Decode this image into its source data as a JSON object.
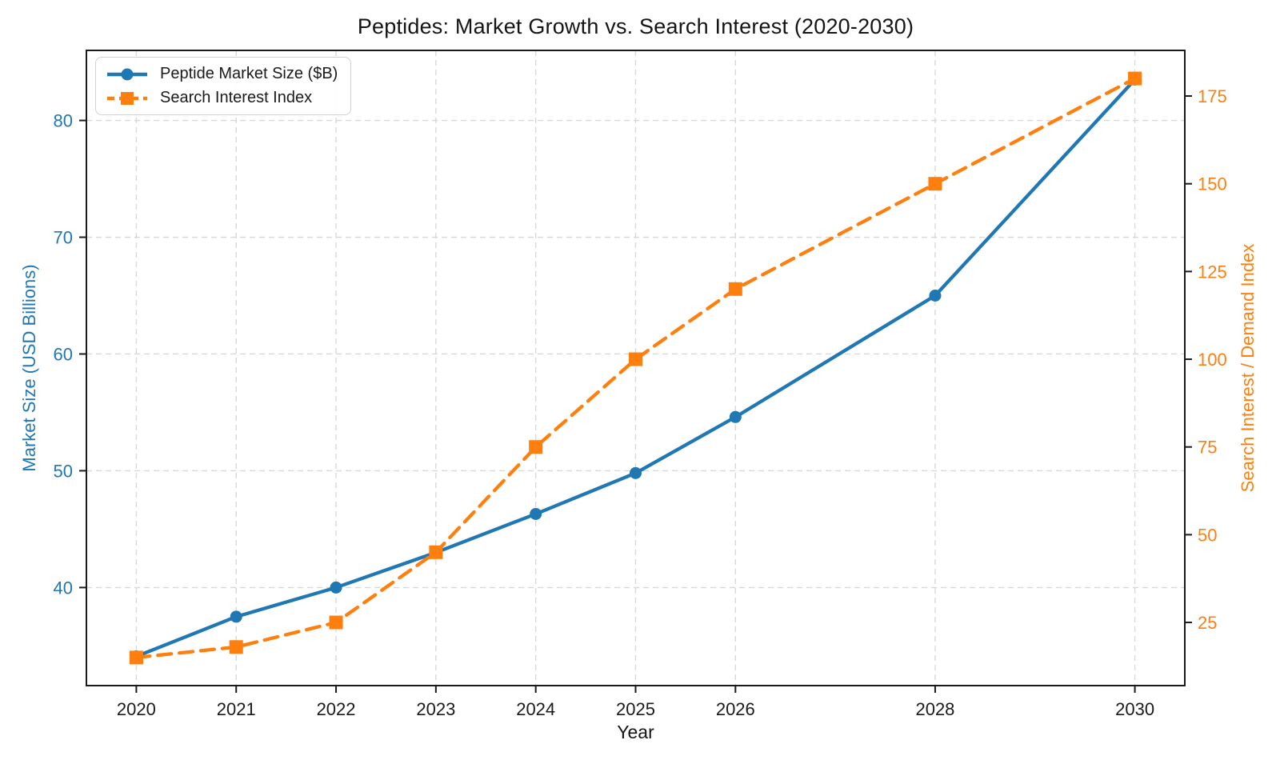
{
  "page": {
    "background": "#ffffff"
  },
  "chart_data": {
    "type": "line",
    "title": "Peptides: Market Growth vs. Search Interest (2020-2030)",
    "xlabel": "Year",
    "ylabel_left": "Market Size (USD Billions)",
    "ylabel_right": "Search Interest / Demand Index",
    "x": [
      2020,
      2021,
      2022,
      2023,
      2024,
      2025,
      2026,
      2028,
      2030
    ],
    "x_tick_labels": [
      "2020",
      "2021",
      "2022",
      "2023",
      "2024",
      "2025",
      "2026",
      "2028",
      "2030"
    ],
    "xlim": [
      2019.5,
      2030.5
    ],
    "left_axis": {
      "ticks": [
        40,
        50,
        60,
        70,
        80
      ],
      "lim": [
        31.6,
        86.0
      ],
      "color": "#1f77b4"
    },
    "right_axis": {
      "ticks": [
        25,
        50,
        75,
        100,
        125,
        150,
        175
      ],
      "lim": [
        7,
        188
      ],
      "color": "#ff7f0e"
    },
    "grid": {
      "show": true,
      "color": "#d8d8d8",
      "style": "dashed"
    },
    "legend_position": "upper-left",
    "series": [
      {
        "name": "Peptide Market Size ($B)",
        "axis": "left",
        "color": "#1f77b4",
        "line_style": "solid",
        "marker": "circle",
        "values": [
          34.1,
          37.5,
          40.0,
          43.0,
          46.3,
          49.8,
          54.6,
          65.0,
          83.5
        ]
      },
      {
        "name": "Search Interest Index",
        "axis": "right",
        "color": "#ff7f0e",
        "line_style": "dashed",
        "marker": "square",
        "values": [
          15,
          18,
          25,
          45,
          75,
          100,
          120,
          150,
          180
        ]
      }
    ],
    "spine_color": "#1a1a1a",
    "tick_label_color": "#1a1a1a"
  }
}
